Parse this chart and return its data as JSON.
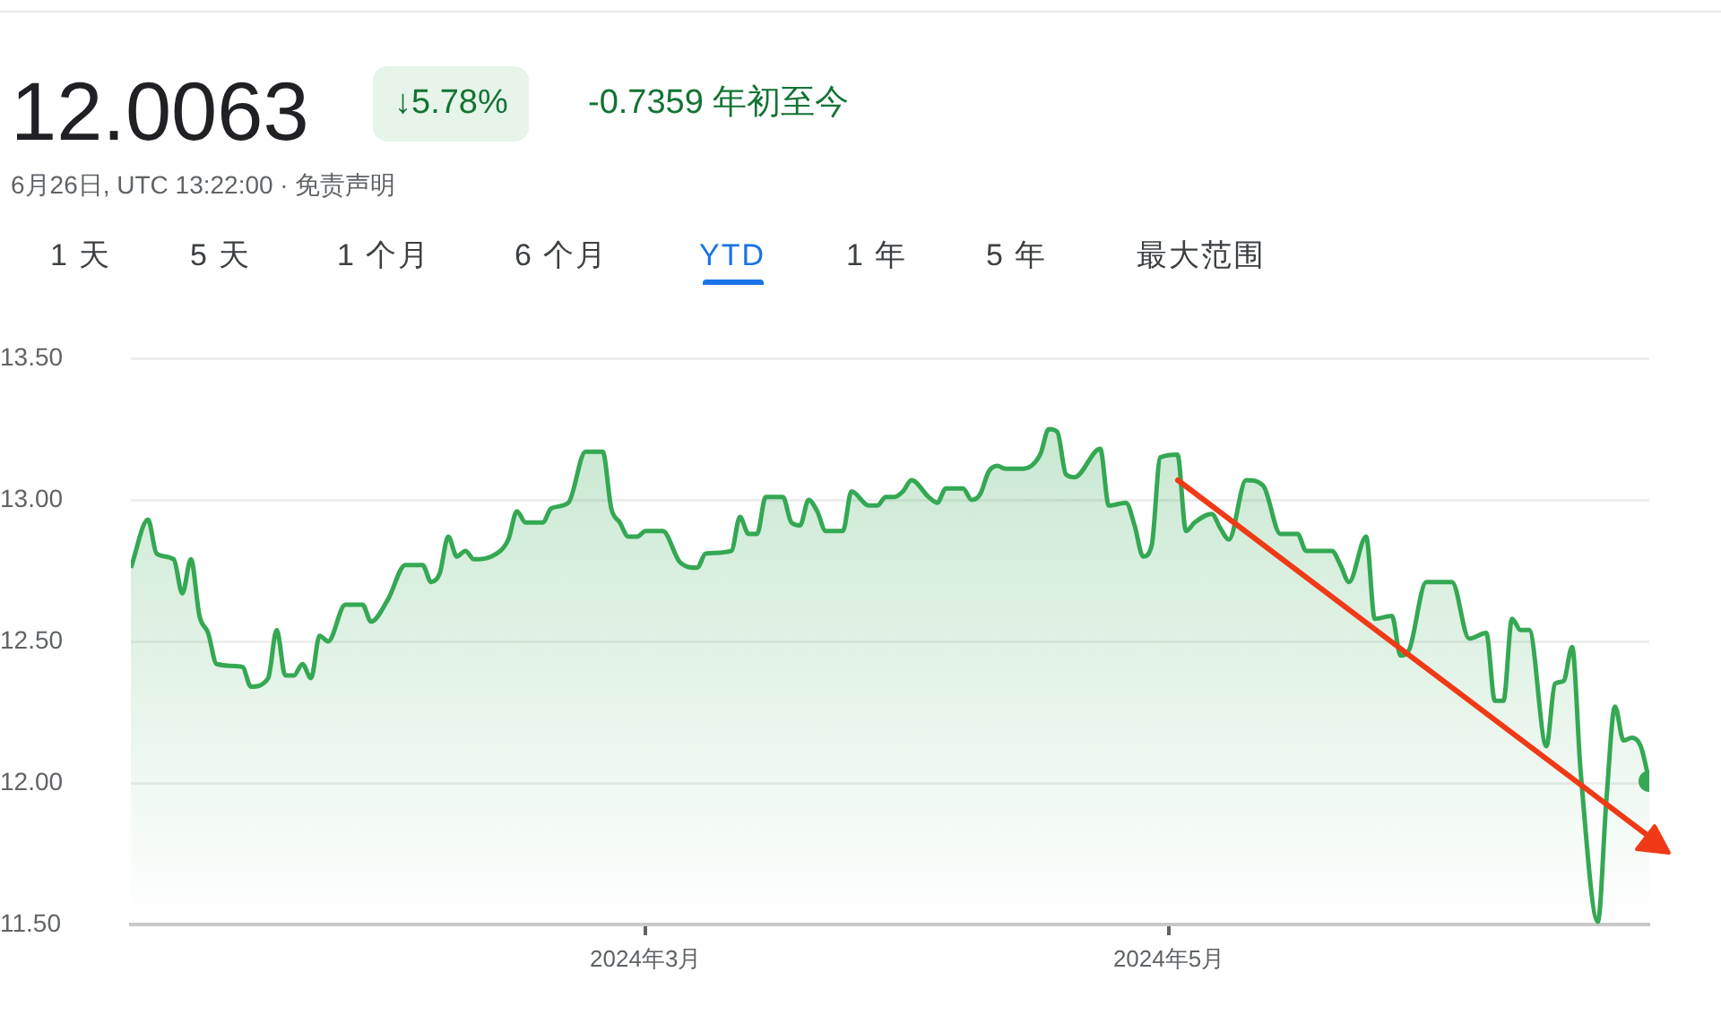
{
  "chart_data": {
    "type": "area",
    "title": "12.0063",
    "subtitle": "6月26日, UTC 13:22:00 · 免责声明",
    "annotations": [
      "↓5.78%",
      "-0.7359 年初至今",
      "1 天",
      "5 天",
      "1 个月",
      "6 个月",
      "YTD",
      "1 年",
      "5 年",
      "最大范围"
    ],
    "x": [
      "2024-01-01",
      "2024-01-03",
      "2024-01-04",
      "2024-01-06",
      "2024-01-07",
      "2024-01-08",
      "2024-01-09",
      "2024-01-10",
      "2024-01-11",
      "2024-01-14",
      "2024-01-15",
      "2024-01-17",
      "2024-01-18",
      "2024-01-19",
      "2024-01-20",
      "2024-01-21",
      "2024-01-22",
      "2024-01-23",
      "2024-01-24",
      "2024-01-26",
      "2024-01-28",
      "2024-01-29",
      "2024-01-31",
      "2024-02-02",
      "2024-02-04",
      "2024-02-05",
      "2024-02-06",
      "2024-02-07",
      "2024-02-08",
      "2024-02-09",
      "2024-02-10",
      "2024-02-12",
      "2024-02-14",
      "2024-02-15",
      "2024-02-16",
      "2024-02-18",
      "2024-02-19",
      "2024-02-21",
      "2024-02-23",
      "2024-02-25",
      "2024-02-26",
      "2024-02-27",
      "2024-02-28",
      "2024-02-29",
      "2024-03-01",
      "2024-03-03",
      "2024-03-05",
      "2024-03-07",
      "2024-03-08",
      "2024-03-11",
      "2024-03-12",
      "2024-03-13",
      "2024-03-14",
      "2024-03-15",
      "2024-03-17",
      "2024-03-18",
      "2024-03-19",
      "2024-03-20",
      "2024-03-21",
      "2024-03-22",
      "2024-03-24",
      "2024-03-25",
      "2024-03-27",
      "2024-03-28",
      "2024-03-29",
      "2024-03-30",
      "2024-03-31",
      "2024-04-01",
      "2024-04-03",
      "2024-04-04",
      "2024-04-05",
      "2024-04-07",
      "2024-04-08",
      "2024-04-09",
      "2024-04-10",
      "2024-04-11",
      "2024-04-12",
      "2024-04-14",
      "2024-04-16",
      "2024-04-17",
      "2024-04-18",
      "2024-04-19",
      "2024-04-20",
      "2024-04-23",
      "2024-04-24",
      "2024-04-26",
      "2024-04-27",
      "2024-04-28",
      "2024-04-29",
      "2024-04-30",
      "2024-05-02",
      "2024-05-03",
      "2024-05-04",
      "2024-05-06",
      "2024-05-07",
      "2024-05-08",
      "2024-05-10",
      "2024-05-12",
      "2024-05-14",
      "2024-05-16",
      "2024-05-17",
      "2024-05-20",
      "2024-05-21",
      "2024-05-22",
      "2024-05-24",
      "2024-05-25",
      "2024-05-27",
      "2024-05-28",
      "2024-05-29",
      "2024-05-31",
      "2024-06-03",
      "2024-06-05",
      "2024-06-07",
      "2024-06-08",
      "2024-06-09",
      "2024-06-10",
      "2024-06-11",
      "2024-06-12",
      "2024-06-14",
      "2024-06-15",
      "2024-06-16",
      "2024-06-17",
      "2024-06-18",
      "2024-06-20",
      "2024-06-21",
      "2024-06-22",
      "2024-06-23",
      "2024-06-24",
      "2024-06-25",
      "2024-06-26"
    ],
    "series": [
      {
        "color": "#34a853",
        "values": [
          12.76,
          12.93,
          12.81,
          12.79,
          12.67,
          12.79,
          12.59,
          12.53,
          12.42,
          12.41,
          12.34,
          12.37,
          12.54,
          12.38,
          12.38,
          12.42,
          12.37,
          12.52,
          12.5,
          12.63,
          12.63,
          12.57,
          12.65,
          12.77,
          12.77,
          12.71,
          12.74,
          12.87,
          12.8,
          12.82,
          12.79,
          12.8,
          12.86,
          12.96,
          12.92,
          12.92,
          12.97,
          12.99,
          13.17,
          13.17,
          12.97,
          12.92,
          12.87,
          12.87,
          12.89,
          12.89,
          12.78,
          12.76,
          12.81,
          12.82,
          12.94,
          12.88,
          12.88,
          13.01,
          13.01,
          12.92,
          12.91,
          13.0,
          12.96,
          12.89,
          12.89,
          13.03,
          12.98,
          12.98,
          13.01,
          13.01,
          13.03,
          13.07,
          13.01,
          12.99,
          13.04,
          13.04,
          13.0,
          13.02,
          13.1,
          13.12,
          13.11,
          13.11,
          13.16,
          13.25,
          13.24,
          13.09,
          13.08,
          13.18,
          12.98,
          12.99,
          12.91,
          12.8,
          12.84,
          13.15,
          13.16,
          12.89,
          12.92,
          12.95,
          12.9,
          12.86,
          13.07,
          13.05,
          12.88,
          12.88,
          12.82,
          12.82,
          12.77,
          12.71,
          12.87,
          12.58,
          12.59,
          12.45,
          12.47,
          12.71,
          12.71,
          12.51,
          12.53,
          12.29,
          12.29,
          12.58,
          12.54,
          12.54,
          12.13,
          12.35,
          12.36,
          12.48,
          12.04,
          11.51,
          11.94,
          12.27,
          12.15,
          12.16,
          12.13,
          12.0063
        ]
      }
    ],
    "xlim": [
      "2024-01-01",
      "2024-06-26"
    ],
    "xticks": [
      {
        "value": "2024-03-01",
        "label": "2024年3月"
      },
      {
        "value": "2024-05-01",
        "label": "2024年5月"
      }
    ],
    "ylim": [
      11.5,
      13.5
    ],
    "yticks": [
      {
        "value": 11.5,
        "label": "11.50"
      },
      {
        "value": 12,
        "label": "12.00"
      },
      {
        "value": 12.5,
        "label": "12.50"
      },
      {
        "value": 13,
        "label": "13.00"
      },
      {
        "value": 13.5,
        "label": "13.50"
      }
    ],
    "grid": "y"
  }
}
